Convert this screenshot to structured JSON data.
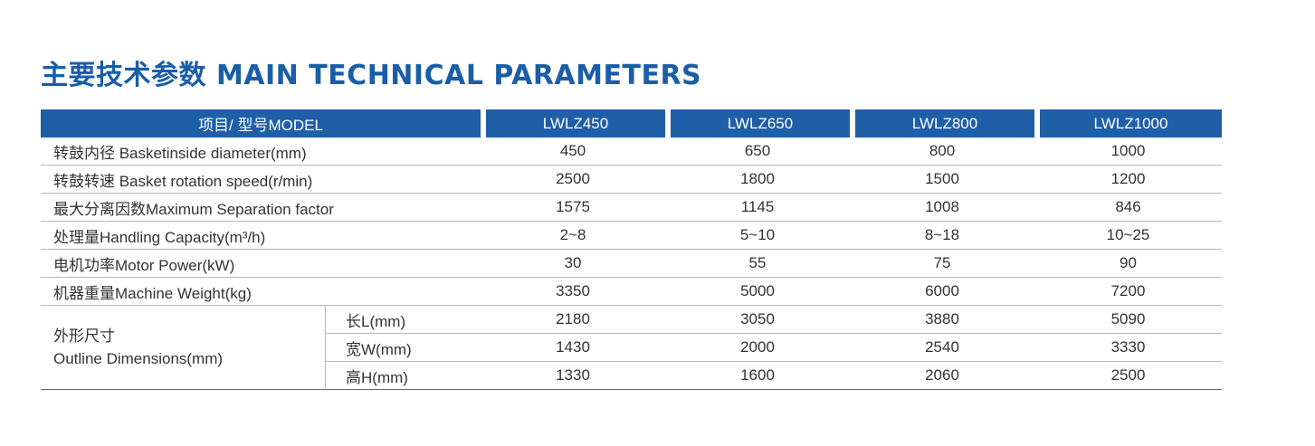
{
  "title": "主要技术参数 MAIN TECHNICAL PARAMETERS",
  "header": {
    "label": "项目/ 型号MODEL",
    "models": [
      "LWLZ450",
      "LWLZ650",
      "LWLZ800",
      "LWLZ1000"
    ]
  },
  "rows": [
    {
      "label": "转鼓内径 Basketinside diameter(mm)",
      "values": [
        "450",
        "650",
        "800",
        "1000"
      ]
    },
    {
      "label": "转鼓转速 Basket rotation speed(r/min)",
      "values": [
        "2500",
        "1800",
        "1500",
        "1200"
      ]
    },
    {
      "label": "最大分离因数Maximum Separation factor",
      "values": [
        "1575",
        "1145",
        "1008",
        "846"
      ]
    },
    {
      "label": "处理量Handling Capacity(m³/h)",
      "values": [
        "2~8",
        "5~10",
        "8~18",
        "10~25"
      ]
    },
    {
      "label": "电机功率Motor Power(kW)",
      "values": [
        "30",
        "55",
        "75",
        "90"
      ]
    },
    {
      "label": "机器重量Machine Weight(kg)",
      "values": [
        "3350",
        "5000",
        "6000",
        "7200"
      ]
    }
  ],
  "dimensions": {
    "label_cn": "外形尺寸",
    "label_en": "Outline Dimensions(mm)",
    "rows": [
      {
        "label": "长L(mm)",
        "values": [
          "2180",
          "3050",
          "3880",
          "5090"
        ]
      },
      {
        "label": "宽W(mm)",
        "values": [
          "1430",
          "2000",
          "2540",
          "3330"
        ]
      },
      {
        "label": "高H(mm)",
        "values": [
          "1330",
          "1600",
          "2060",
          "2500"
        ]
      }
    ]
  },
  "colors": {
    "accent": "#1f5fa8",
    "title": "#1a5ea8"
  }
}
